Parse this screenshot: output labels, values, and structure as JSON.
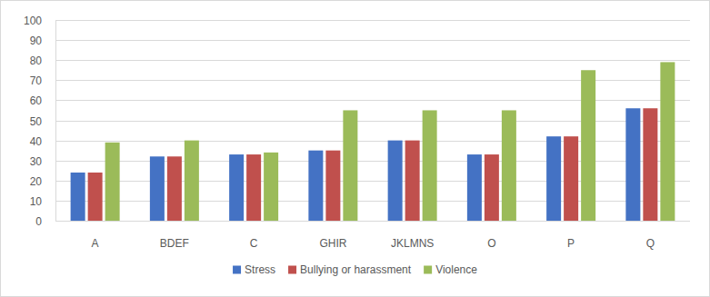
{
  "chart_data": {
    "type": "bar",
    "categories": [
      "A",
      "BDEF",
      "C",
      "GHIR",
      "JKLMNS",
      "O",
      "P",
      "Q"
    ],
    "series": [
      {
        "name": "Stress",
        "color": "#4472c4",
        "values": [
          24,
          32,
          33,
          35,
          40,
          33,
          42,
          56
        ]
      },
      {
        "name": "Bullying or harassment",
        "color": "#c0504d",
        "values": [
          24,
          32,
          33,
          35,
          40,
          33,
          42,
          56
        ]
      },
      {
        "name": "Violence",
        "color": "#9bbb59",
        "values": [
          39,
          40,
          34,
          55,
          55,
          55,
          75,
          79
        ]
      }
    ],
    "ylim": [
      0,
      100
    ],
    "yticks": [
      0,
      10,
      20,
      30,
      40,
      50,
      60,
      70,
      80,
      90,
      100
    ],
    "grid": true,
    "legend": "bottom"
  }
}
